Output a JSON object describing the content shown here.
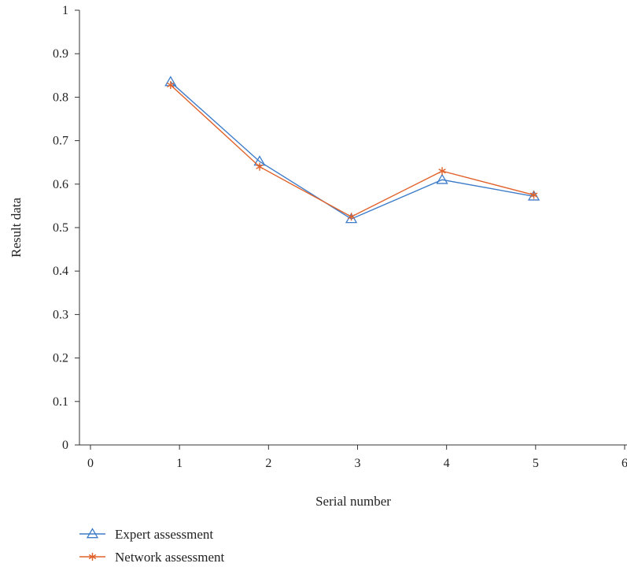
{
  "chart_data": {
    "type": "line",
    "title": "",
    "xlabel": "Serial number",
    "ylabel": "Result data",
    "xlim": [
      0,
      6
    ],
    "ylim": [
      0,
      1
    ],
    "xticks": [
      "0",
      "1",
      "2",
      "3",
      "4",
      "5",
      "6"
    ],
    "yticks": [
      "0",
      "0.1",
      "0.2",
      "0.3",
      "0.4",
      "0.5",
      "0.6",
      "0.7",
      "0.8",
      "0.9",
      "1"
    ],
    "grid": false,
    "legend_position": "bottom-left",
    "series": [
      {
        "name": "Expert assessment",
        "color": "#3d7cc9",
        "marker": "triangle",
        "x": [
          0.9,
          1.9,
          2.93,
          3.95,
          4.98
        ],
        "y": [
          0.835,
          0.652,
          0.52,
          0.61,
          0.572
        ]
      },
      {
        "name": "Network assessment",
        "color": "#e0622a",
        "marker": "asterisk",
        "x": [
          0.9,
          1.9,
          2.93,
          3.95,
          4.98
        ],
        "y": [
          0.828,
          0.64,
          0.525,
          0.63,
          0.575
        ]
      }
    ]
  }
}
